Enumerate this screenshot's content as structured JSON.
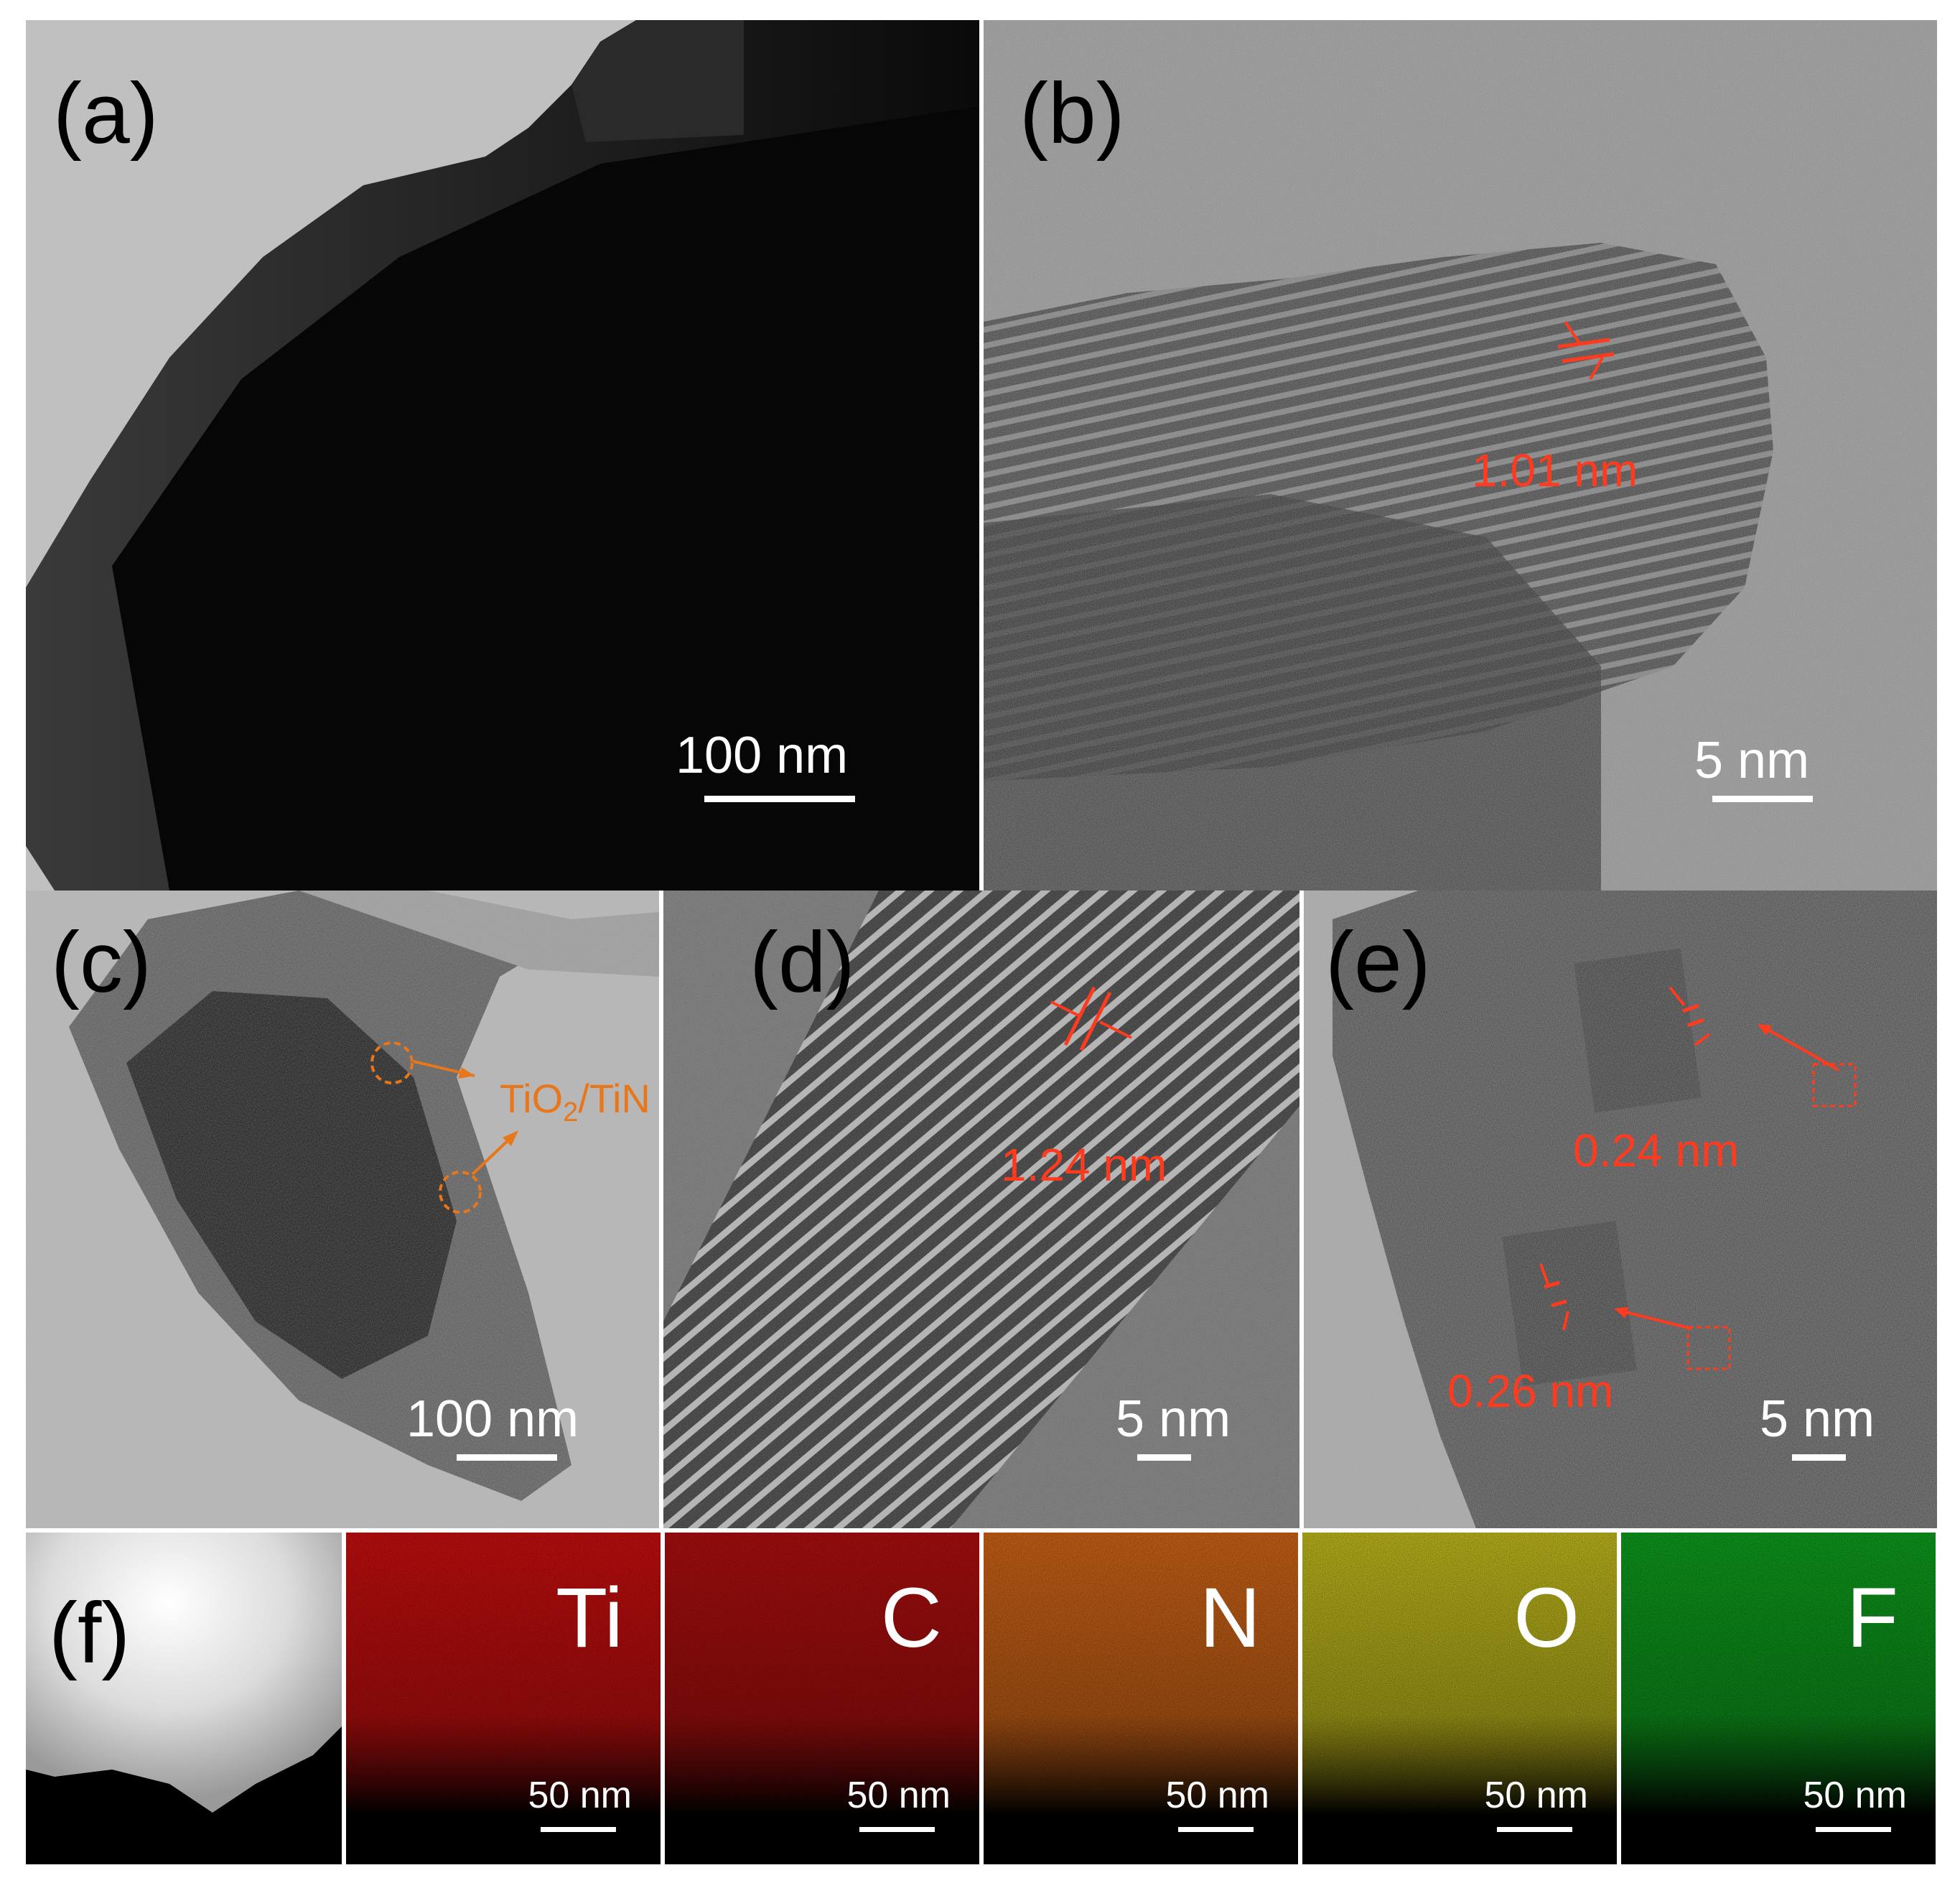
{
  "figure": {
    "panels": {
      "a": {
        "letter": "(a)",
        "scale_bar": "100 nm"
      },
      "b": {
        "letter": "(b)",
        "scale_bar": "5 nm",
        "lattice_spacing": "1.01 nm"
      },
      "c": {
        "letter": "(c)",
        "scale_bar": "100 nm",
        "annotation_main": "TiO",
        "annotation_sub": "2",
        "annotation_tail": "/TiN"
      },
      "d": {
        "letter": "(d)",
        "scale_bar": "5 nm",
        "lattice_spacing": "1.24 nm"
      },
      "e": {
        "letter": "(e)",
        "scale_bar": "5 nm",
        "lattice_spacing_1": "0.24 nm",
        "lattice_spacing_2": "0.26 nm"
      },
      "f": {
        "letter": "(f)"
      }
    },
    "eds_maps": [
      {
        "element": "Ti",
        "scale_bar": "50 nm",
        "color": "#e01010"
      },
      {
        "element": "C",
        "scale_bar": "50 nm",
        "color": "#c41010"
      },
      {
        "element": "N",
        "scale_bar": "50 nm",
        "color": "#e8701a"
      },
      {
        "element": "O",
        "scale_bar": "50 nm",
        "color": "#d8d020"
      },
      {
        "element": "F",
        "scale_bar": "50 nm",
        "color": "#10b020"
      }
    ],
    "colors": {
      "annotation_red": "#ff3b1f",
      "annotation_orange": "#e8761a"
    }
  }
}
